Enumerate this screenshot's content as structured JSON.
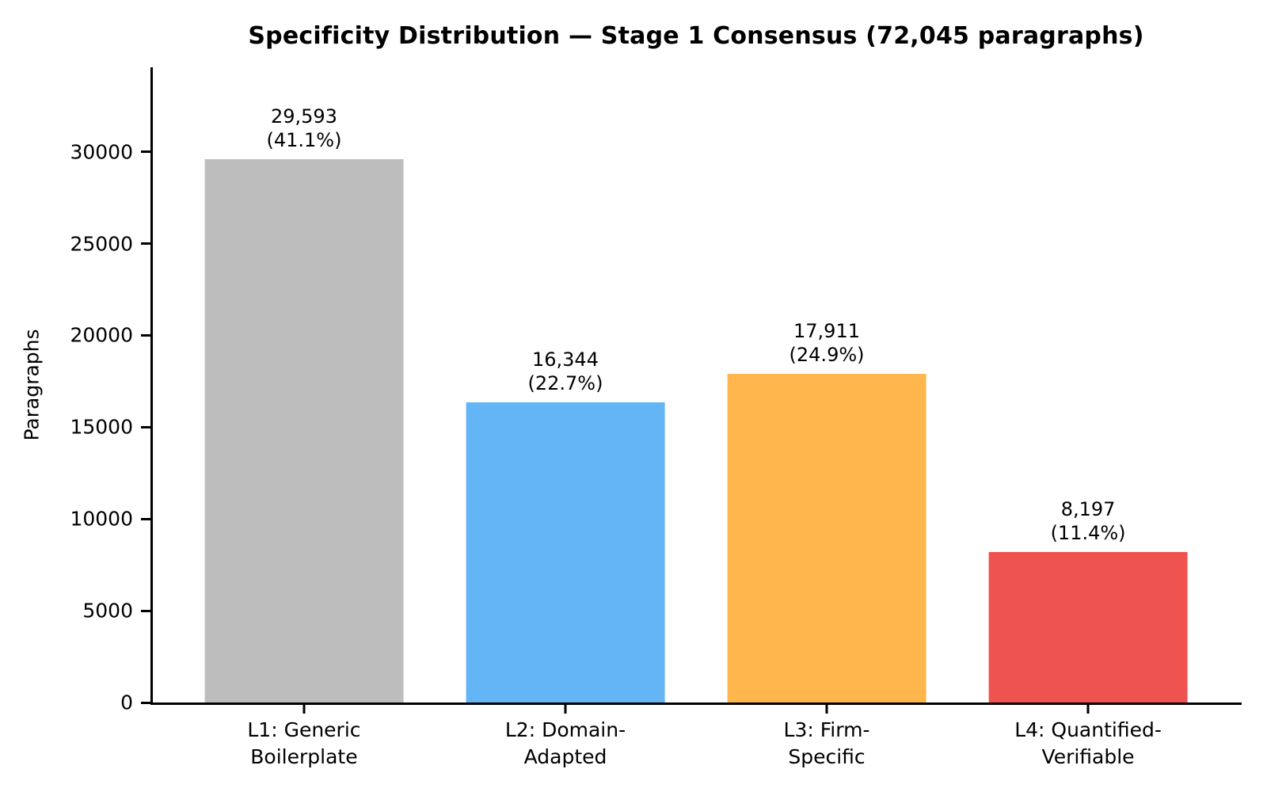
{
  "title": "Specificity Distribution — Stage 1 Consensus (72,045 paragraphs)",
  "y_axis": {
    "label": "Paragraphs",
    "max": 34600,
    "ticks": [
      {
        "value": 0,
        "label": "0"
      },
      {
        "value": 5000,
        "label": "5000"
      },
      {
        "value": 10000,
        "label": "10000"
      },
      {
        "value": 15000,
        "label": "15000"
      },
      {
        "value": 20000,
        "label": "20000"
      },
      {
        "value": 25000,
        "label": "25000"
      },
      {
        "value": 30000,
        "label": "30000"
      }
    ]
  },
  "bars": [
    {
      "category_line1": "L1: Generic",
      "category_line2": "Boilerplate",
      "value": 29593,
      "value_label": "29,593",
      "percent_label": "(41.1%)",
      "color": "#bdbdbd"
    },
    {
      "category_line1": "L2: Domain-",
      "category_line2": "Adapted",
      "value": 16344,
      "value_label": "16,344",
      "percent_label": "(22.7%)",
      "color": "#64b5f6"
    },
    {
      "category_line1": "L3: Firm-",
      "category_line2": "Specific",
      "value": 17911,
      "value_label": "17,911",
      "percent_label": "(24.9%)",
      "color": "#ffb74d"
    },
    {
      "category_line1": "L4: Quantified-",
      "category_line2": "Verifiable",
      "value": 8197,
      "value_label": "8,197",
      "percent_label": "(11.4%)",
      "color": "#ef5350"
    }
  ],
  "chart_data": {
    "type": "bar",
    "title": "Specificity Distribution — Stage 1 Consensus (72,045 paragraphs)",
    "categories": [
      "L1: Generic Boilerplate",
      "L2: Domain-Adapted",
      "L3: Firm-Specific",
      "L4: Quantified-Verifiable"
    ],
    "values": [
      29593,
      16344,
      17911,
      8197
    ],
    "percentages": [
      41.1,
      22.7,
      24.9,
      11.4
    ],
    "total_paragraphs": 72045,
    "bar_colors": [
      "#bdbdbd",
      "#64b5f6",
      "#ffb74d",
      "#ef5350"
    ],
    "xlabel": "",
    "ylabel": "Paragraphs",
    "ylim": [
      0,
      34600
    ],
    "yticks": [
      0,
      5000,
      10000,
      15000,
      20000,
      25000,
      30000
    ],
    "grid": false,
    "legend": "none"
  }
}
